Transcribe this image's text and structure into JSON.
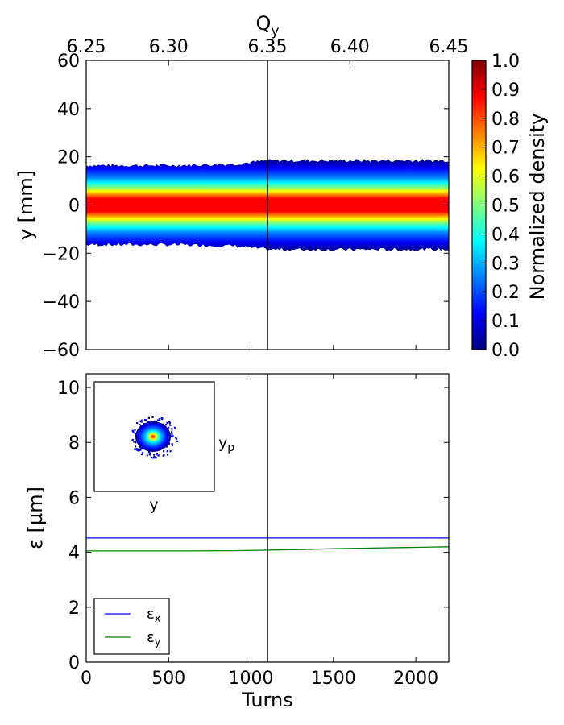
{
  "chart_data": [
    {
      "type": "heatmap",
      "panel": "top",
      "xlabel": "",
      "x_top_label": "Q",
      "x_top_label_sub": "y",
      "ylabel": "y [mm]",
      "xlim": [
        0,
        2200
      ],
      "ylim": [
        -60,
        60
      ],
      "yticks": [
        "60",
        "40",
        "20",
        "0",
        "−20",
        "−40",
        "−60"
      ],
      "ytick_values": [
        60,
        40,
        20,
        0,
        -20,
        -40,
        -60
      ],
      "top_ticks": [
        "6.25",
        "6.30",
        "6.35",
        "6.40",
        "6.45"
      ],
      "top_tick_turns": [
        0,
        500,
        1100,
        1600,
        2200
      ],
      "vline_turn": 1100,
      "band_half_width_mm": [
        {
          "turn": 0,
          "value": 16.5
        },
        {
          "turn": 500,
          "value": 16.5
        },
        {
          "turn": 900,
          "value": 17
        },
        {
          "turn": 1100,
          "value": 18.5
        },
        {
          "turn": 1600,
          "value": 18.5
        },
        {
          "turn": 2200,
          "value": 18.5
        }
      ],
      "colorbar": {
        "label": "Normalized density",
        "ticks": [
          "1.0",
          "0.9",
          "0.8",
          "0.7",
          "0.6",
          "0.5",
          "0.4",
          "0.3",
          "0.2",
          "0.1",
          "0.0"
        ],
        "tick_values": [
          1.0,
          0.9,
          0.8,
          0.7,
          0.6,
          0.5,
          0.4,
          0.3,
          0.2,
          0.1,
          0.0
        ],
        "colormap": [
          "#00007f",
          "#0000ff",
          "#007fff",
          "#00ffff",
          "#7fff7f",
          "#ffff00",
          "#ff7f00",
          "#ff0000",
          "#7f0000"
        ]
      }
    },
    {
      "type": "line",
      "panel": "bottom",
      "xlabel": "Turns",
      "ylabel": "ε [µm]",
      "xlim": [
        0,
        2200
      ],
      "ylim": [
        0,
        10.5
      ],
      "xticks": [
        "0",
        "500",
        "1000",
        "1500",
        "2000"
      ],
      "xtick_values": [
        0,
        500,
        1000,
        1500,
        2000
      ],
      "yticks": [
        "0",
        "2",
        "4",
        "6",
        "8",
        "10"
      ],
      "ytick_values": [
        0,
        2,
        4,
        6,
        8,
        10
      ],
      "vline_turn": 1100,
      "series": [
        {
          "name": "ε",
          "name_sub": "x",
          "color": "#0000ff",
          "x": [
            0,
            500,
            1000,
            1500,
            2200
          ],
          "y": [
            4.52,
            4.52,
            4.52,
            4.52,
            4.52
          ]
        },
        {
          "name": "ε",
          "name_sub": "y",
          "color": "#008000",
          "x": [
            0,
            300,
            600,
            900,
            1100,
            1300,
            1500,
            1700,
            1900,
            2100,
            2200
          ],
          "y": [
            4.05,
            4.05,
            4.05,
            4.06,
            4.08,
            4.1,
            4.13,
            4.15,
            4.17,
            4.19,
            4.2
          ]
        }
      ],
      "legend_position": "lower-left",
      "inset": {
        "xlabel": "y",
        "ylabel": "y",
        "ylabel_sub": "p"
      }
    }
  ]
}
